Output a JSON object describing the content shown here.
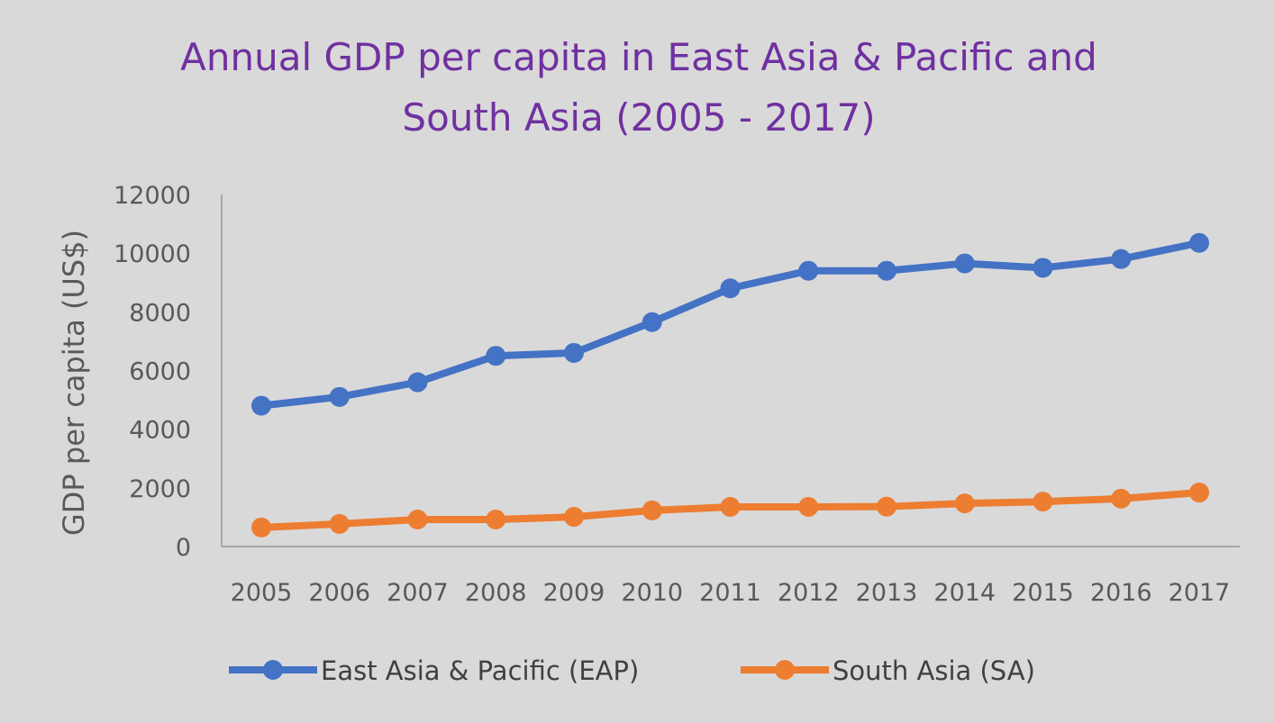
{
  "chart_data": {
    "type": "line",
    "title": [
      "Annual GDP per capita in East Asia & Pacific and",
      "South Asia (2005 - 2017)"
    ],
    "xlabel": "",
    "ylabel": "GDP per capita (US$)",
    "x": [
      "2005",
      "2006",
      "2007",
      "2008",
      "2009",
      "2010",
      "2011",
      "2012",
      "2013",
      "2014",
      "2015",
      "2016",
      "2017"
    ],
    "ylim": [
      0,
      12000
    ],
    "yticks": [
      0,
      2000,
      4000,
      6000,
      8000,
      10000,
      12000
    ],
    "grid": false,
    "legend_position": "bottom",
    "series": [
      {
        "name": "East Asia & Pacific (EAP)",
        "color": "#4472c4",
        "values": [
          4800,
          5100,
          5600,
          6500,
          6600,
          7650,
          8800,
          9400,
          9400,
          9650,
          9500,
          9800,
          10350
        ]
      },
      {
        "name": "South Asia (SA)",
        "color": "#ed7d31",
        "values": [
          650,
          770,
          920,
          920,
          1010,
          1230,
          1350,
          1350,
          1360,
          1470,
          1530,
          1630,
          1840
        ]
      }
    ]
  }
}
